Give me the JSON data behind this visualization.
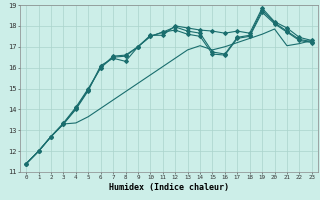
{
  "xlabel": "Humidex (Indice chaleur)",
  "bg_color": "#cceee8",
  "grid_color": "#aad4cc",
  "line_color": "#1a6e6e",
  "xlim": [
    -0.5,
    23.5
  ],
  "ylim": [
    11,
    19
  ],
  "xticks": [
    0,
    1,
    2,
    3,
    4,
    5,
    6,
    7,
    8,
    9,
    10,
    11,
    12,
    13,
    14,
    15,
    16,
    17,
    18,
    19,
    20,
    21,
    22,
    23
  ],
  "yticks": [
    11,
    12,
    13,
    14,
    15,
    16,
    17,
    18,
    19
  ],
  "series": [
    [
      11.4,
      12.0,
      12.7,
      13.3,
      14.0,
      14.9,
      16.1,
      16.45,
      16.3,
      17.0,
      17.55,
      17.55,
      18.0,
      17.9,
      17.8,
      17.75,
      17.65,
      17.75,
      17.65,
      18.85,
      18.2,
      17.9,
      17.45,
      17.3
    ],
    [
      11.4,
      12.0,
      12.7,
      13.3,
      14.05,
      14.95,
      16.0,
      16.55,
      16.6,
      17.0,
      17.5,
      17.7,
      17.95,
      17.75,
      17.65,
      16.75,
      16.65,
      17.45,
      17.55,
      18.75,
      18.15,
      17.75,
      17.35,
      17.25
    ],
    [
      11.4,
      12.0,
      12.7,
      13.35,
      14.1,
      15.0,
      16.0,
      16.5,
      16.55,
      17.0,
      17.5,
      17.7,
      17.8,
      17.6,
      17.5,
      16.65,
      16.6,
      17.4,
      17.5,
      18.65,
      18.1,
      17.7,
      17.3,
      17.2
    ],
    [
      11.4,
      12.0,
      12.7,
      13.3,
      13.35,
      13.65,
      14.05,
      14.45,
      14.85,
      15.25,
      15.65,
      16.05,
      16.45,
      16.85,
      17.05,
      16.85,
      17.0,
      17.2,
      17.4,
      17.6,
      17.85,
      17.05,
      17.15,
      17.3
    ]
  ],
  "has_markers": [
    true,
    true,
    true,
    false
  ],
  "marker": "D",
  "marker_size": 2.0,
  "linewidth": 0.8
}
